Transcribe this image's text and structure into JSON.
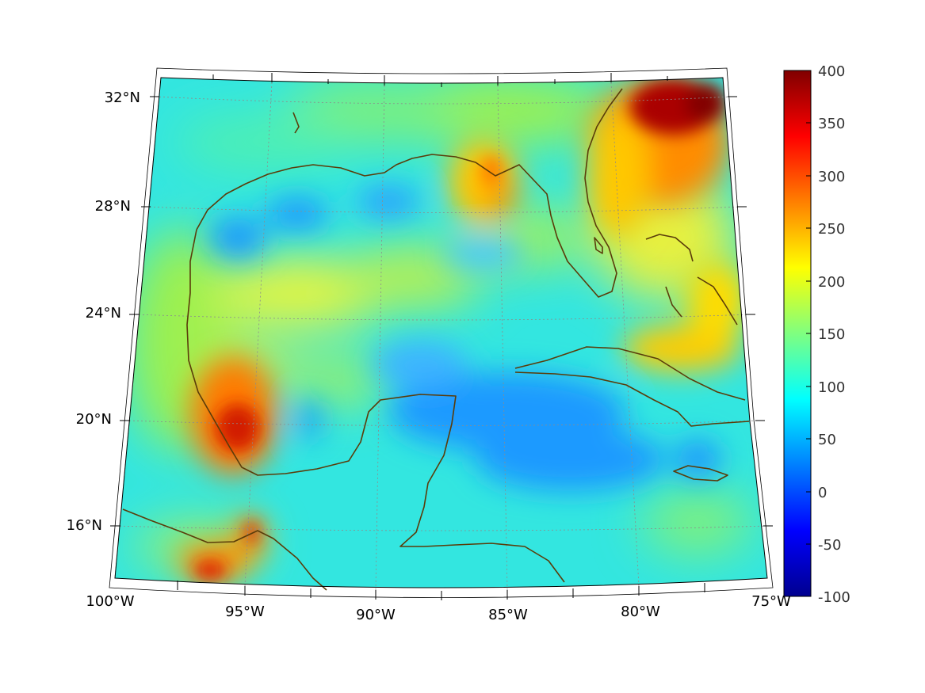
{
  "map": {
    "projection": "conic",
    "grid": true,
    "lon_labels": [
      "100°W",
      "95°W",
      "90°W",
      "85°W",
      "80°W",
      "75°W"
    ],
    "lat_labels": [
      "32°N",
      "28°N",
      "24°N",
      "20°N",
      "16°N"
    ],
    "coastline_color": "#5a3c0a",
    "colormap": "jet"
  },
  "colorbar": {
    "min": -100,
    "max": 400,
    "ticks": [
      "400",
      "350",
      "300",
      "250",
      "200",
      "150",
      "100",
      "50",
      "0",
      "-50",
      "-100"
    ]
  }
}
